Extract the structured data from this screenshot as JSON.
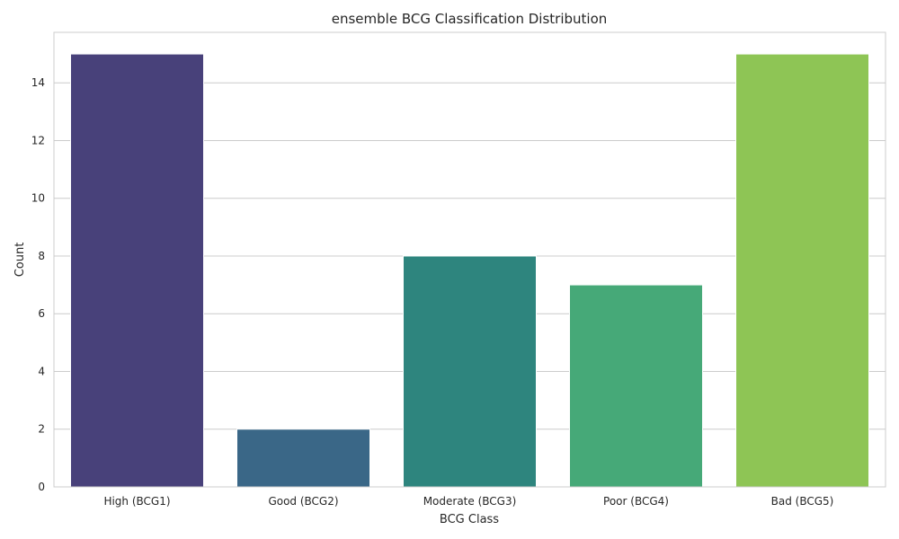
{
  "chart_data": {
    "type": "bar",
    "title": "ensemble BCG Classification Distribution",
    "xlabel": "BCG Class",
    "ylabel": "Count",
    "categories": [
      "High (BCG1)",
      "Good (BCG2)",
      "Moderate (BCG3)",
      "Poor (BCG4)",
      "Bad (BCG5)"
    ],
    "values": [
      15,
      2,
      8,
      7,
      15
    ],
    "colors": [
      "#48417a",
      "#3a6787",
      "#2e857e",
      "#46a978",
      "#8ec555"
    ],
    "ylim": [
      0,
      15.75
    ],
    "yticks": [
      0,
      2,
      4,
      6,
      8,
      10,
      12,
      14
    ],
    "grid": "horizontal",
    "legend": "none"
  }
}
